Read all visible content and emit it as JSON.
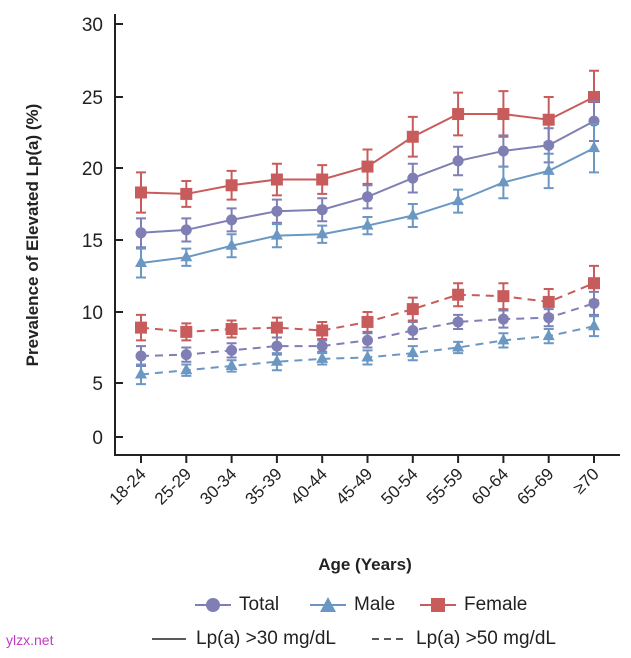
{
  "chart_data": {
    "type": "line",
    "ylabel": "Prevalence of Elevated Lp(a) (%)",
    "xlabel": "Age (Years)",
    "categories": [
      "18-24",
      "25-29",
      "30-34",
      "35-39",
      "40-44",
      "45-49",
      "50-54",
      "55-59",
      "60-64",
      "65-69",
      "≥70"
    ],
    "yticks": [
      "0",
      "5",
      "10",
      "15",
      "20",
      "25",
      "30"
    ],
    "ylim": [
      0,
      30
    ],
    "series": [
      {
        "name": "Female",
        "threshold": ">30",
        "values": [
          18.3,
          18.2,
          18.8,
          19.2,
          19.2,
          20.1,
          22.2,
          23.8,
          23.8,
          23.4,
          25.0
        ],
        "err": [
          1.4,
          0.9,
          1.0,
          1.1,
          1.0,
          1.2,
          1.4,
          1.5,
          1.6,
          1.6,
          1.8
        ]
      },
      {
        "name": "Total",
        "threshold": ">30",
        "values": [
          15.5,
          15.7,
          16.4,
          17.0,
          17.1,
          18.0,
          19.3,
          20.5,
          21.2,
          21.6,
          23.3
        ],
        "err": [
          1.0,
          0.8,
          0.8,
          0.8,
          0.8,
          0.8,
          1.0,
          1.0,
          1.1,
          1.2,
          1.4
        ]
      },
      {
        "name": "Male",
        "threshold": ">30",
        "values": [
          13.4,
          13.8,
          14.6,
          15.3,
          15.4,
          16.0,
          16.7,
          17.7,
          19.0,
          19.8,
          21.4
        ],
        "err": [
          1.0,
          0.6,
          0.8,
          0.8,
          0.6,
          0.6,
          0.8,
          0.8,
          1.1,
          1.2,
          1.7
        ]
      },
      {
        "name": "Female",
        "threshold": ">50",
        "values": [
          8.9,
          8.6,
          8.8,
          8.9,
          8.7,
          9.3,
          10.2,
          11.2,
          11.1,
          10.7,
          12.0
        ],
        "err": [
          0.9,
          0.6,
          0.6,
          0.7,
          0.6,
          0.7,
          0.8,
          0.8,
          0.9,
          0.9,
          1.2
        ]
      },
      {
        "name": "Total",
        "threshold": ">50",
        "values": [
          6.9,
          7.0,
          7.3,
          7.6,
          7.6,
          8.0,
          8.7,
          9.3,
          9.5,
          9.6,
          10.6
        ],
        "err": [
          0.7,
          0.5,
          0.5,
          0.6,
          0.4,
          0.5,
          0.6,
          0.5,
          0.6,
          0.6,
          0.8
        ]
      },
      {
        "name": "Male",
        "threshold": ">50",
        "values": [
          5.6,
          5.9,
          6.2,
          6.5,
          6.7,
          6.8,
          7.1,
          7.5,
          8.0,
          8.3,
          9.0
        ],
        "err": [
          0.7,
          0.4,
          0.4,
          0.6,
          0.4,
          0.5,
          0.5,
          0.4,
          0.5,
          0.5,
          0.7
        ]
      }
    ],
    "colors": {
      "Total": "#7f7fb5",
      "Male": "#6b97c3",
      "Female": "#c85c5c"
    },
    "legend": {
      "total": "Total",
      "male": "Male",
      "female": "Female",
      "solid": "Lp(a) >30 mg/dL",
      "dashed": "Lp(a) >50 mg/dL"
    }
  },
  "watermark": "ylzx.net"
}
